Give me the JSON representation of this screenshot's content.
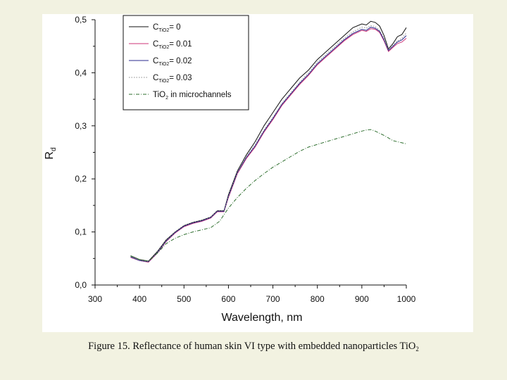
{
  "caption": {
    "text": "Figure 15. Reflectance of human skin VI type with embedded  nanoparticles Ti",
    "tail": "O",
    "tail_sub": "2"
  },
  "chart_data": {
    "type": "line",
    "xlabel": "Wavelength, nm",
    "ylabel": "R",
    "ylabel_sub": "d",
    "xlim": [
      300,
      1000
    ],
    "ylim": [
      0.0,
      0.5
    ],
    "xticks": [
      300,
      400,
      500,
      600,
      700,
      800,
      900,
      1000
    ],
    "yticks": [
      0.0,
      0.1,
      0.2,
      0.3,
      0.4,
      0.5
    ],
    "ytick_labels": [
      "0,0",
      "0,1",
      "0,2",
      "0,3",
      "0,4",
      "0,5"
    ],
    "grid": false,
    "legend_position": "top-left",
    "series": [
      {
        "name": "C_TiO2 = 0",
        "legend_main": "C",
        "legend_sub": "TiO",
        "legend_sub2": "2",
        "legend_value": "= 0",
        "color": "#111111",
        "style": "solid",
        "x": [
          380,
          400,
          420,
          440,
          460,
          480,
          500,
          520,
          540,
          560,
          575,
          590,
          600,
          620,
          640,
          660,
          680,
          700,
          720,
          740,
          760,
          780,
          800,
          820,
          840,
          860,
          880,
          900,
          910,
          920,
          930,
          940,
          950,
          960,
          970,
          980,
          990,
          1000
        ],
        "y": [
          0.055,
          0.048,
          0.045,
          0.063,
          0.085,
          0.1,
          0.112,
          0.118,
          0.122,
          0.128,
          0.14,
          0.14,
          0.17,
          0.215,
          0.245,
          0.27,
          0.3,
          0.325,
          0.35,
          0.37,
          0.39,
          0.405,
          0.425,
          0.44,
          0.455,
          0.47,
          0.485,
          0.492,
          0.49,
          0.497,
          0.495,
          0.488,
          0.47,
          0.445,
          0.455,
          0.468,
          0.472,
          0.485
        ]
      },
      {
        "name": "C_TiO2 = 0.01",
        "legend_main": "C",
        "legend_sub": "TiO",
        "legend_sub2": "2",
        "legend_value": "= 0.01",
        "color": "#cc3377",
        "style": "solid",
        "x": [
          380,
          400,
          420,
          440,
          460,
          480,
          500,
          520,
          540,
          560,
          575,
          590,
          600,
          620,
          640,
          660,
          680,
          700,
          720,
          740,
          760,
          780,
          800,
          820,
          840,
          860,
          880,
          900,
          910,
          920,
          930,
          940,
          950,
          960,
          970,
          980,
          990,
          1000
        ],
        "y": [
          0.052,
          0.046,
          0.043,
          0.06,
          0.082,
          0.098,
          0.11,
          0.116,
          0.12,
          0.126,
          0.138,
          0.138,
          0.165,
          0.21,
          0.238,
          0.26,
          0.288,
          0.312,
          0.338,
          0.358,
          0.378,
          0.395,
          0.415,
          0.43,
          0.445,
          0.46,
          0.472,
          0.48,
          0.478,
          0.483,
          0.482,
          0.476,
          0.46,
          0.44,
          0.448,
          0.455,
          0.458,
          0.465
        ]
      },
      {
        "name": "C_TiO2 = 0.02",
        "legend_main": "C",
        "legend_sub": "TiO",
        "legend_sub2": "2",
        "legend_value": "= 0.02",
        "color": "#2a2a8c",
        "style": "solid",
        "x": [
          380,
          400,
          420,
          440,
          460,
          480,
          500,
          520,
          540,
          560,
          575,
          590,
          600,
          620,
          640,
          660,
          680,
          700,
          720,
          740,
          760,
          780,
          800,
          820,
          840,
          860,
          880,
          900,
          910,
          920,
          930,
          940,
          950,
          960,
          970,
          980,
          990,
          1000
        ],
        "y": [
          0.053,
          0.046,
          0.044,
          0.061,
          0.083,
          0.099,
          0.111,
          0.117,
          0.121,
          0.127,
          0.139,
          0.139,
          0.167,
          0.212,
          0.24,
          0.262,
          0.29,
          0.314,
          0.34,
          0.36,
          0.38,
          0.397,
          0.417,
          0.432,
          0.447,
          0.462,
          0.474,
          0.482,
          0.48,
          0.486,
          0.484,
          0.478,
          0.462,
          0.442,
          0.45,
          0.458,
          0.462,
          0.47
        ]
      },
      {
        "name": "C_TiO2 = 0.03",
        "legend_main": "C",
        "legend_sub": "TiO",
        "legend_sub2": "2",
        "legend_value": "= 0.03",
        "color": "#888888",
        "style": "dotted",
        "x": [
          380,
          400,
          420,
          440,
          460,
          480,
          500,
          520,
          540,
          560,
          575,
          590,
          600,
          620,
          640,
          660,
          680,
          700,
          720,
          740,
          760,
          780,
          800,
          820,
          840,
          860,
          880,
          900,
          910,
          920,
          930,
          940,
          950,
          960,
          970,
          980,
          990,
          1000
        ],
        "y": [
          0.054,
          0.047,
          0.044,
          0.062,
          0.084,
          0.1,
          0.112,
          0.118,
          0.122,
          0.128,
          0.14,
          0.14,
          0.168,
          0.213,
          0.242,
          0.265,
          0.292,
          0.316,
          0.342,
          0.362,
          0.382,
          0.4,
          0.42,
          0.435,
          0.45,
          0.465,
          0.477,
          0.486,
          0.484,
          0.489,
          0.487,
          0.48,
          0.465,
          0.444,
          0.452,
          0.46,
          0.465,
          0.475
        ]
      },
      {
        "name": "TiO2 in microchannels",
        "legend_main": "TiO",
        "legend_sub": "2",
        "legend_sub2": "",
        "legend_value": " in microchannels",
        "color": "#2f6f2f",
        "style": "dashdot",
        "x": [
          380,
          400,
          420,
          440,
          460,
          480,
          500,
          520,
          540,
          560,
          580,
          600,
          620,
          640,
          660,
          680,
          700,
          720,
          740,
          760,
          780,
          800,
          820,
          840,
          860,
          880,
          900,
          910,
          920,
          930,
          940,
          950,
          960,
          970,
          980,
          990,
          1000
        ],
        "y": [
          0.055,
          0.048,
          0.045,
          0.06,
          0.078,
          0.088,
          0.095,
          0.1,
          0.104,
          0.108,
          0.12,
          0.145,
          0.165,
          0.182,
          0.197,
          0.21,
          0.222,
          0.232,
          0.242,
          0.252,
          0.26,
          0.265,
          0.27,
          0.275,
          0.28,
          0.285,
          0.29,
          0.292,
          0.293,
          0.29,
          0.286,
          0.282,
          0.277,
          0.272,
          0.27,
          0.268,
          0.266
        ]
      }
    ]
  }
}
